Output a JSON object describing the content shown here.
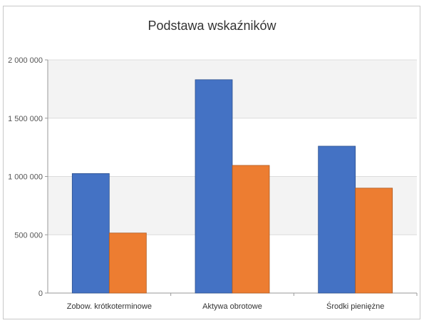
{
  "chart_data": {
    "type": "bar",
    "title": "Podstawa wskaźników",
    "categories": [
      "Zobow. krótkoterminowe",
      "Aktywa obrotowe",
      "Środki pieniężne"
    ],
    "series": [
      {
        "color": "#4472c4",
        "values": [
          1025000,
          1830000,
          1260000
        ]
      },
      {
        "color": "#ed7d31",
        "values": [
          515000,
          1095000,
          900000
        ]
      }
    ],
    "ylim": [
      0,
      2000000
    ],
    "yticks": [
      0,
      500000,
      1000000,
      1500000,
      2000000
    ],
    "ytick_labels": [
      "0",
      "500 000",
      "1 000 000",
      "1 500 000",
      "2 000 000"
    ],
    "grid": true,
    "legend": "none"
  }
}
